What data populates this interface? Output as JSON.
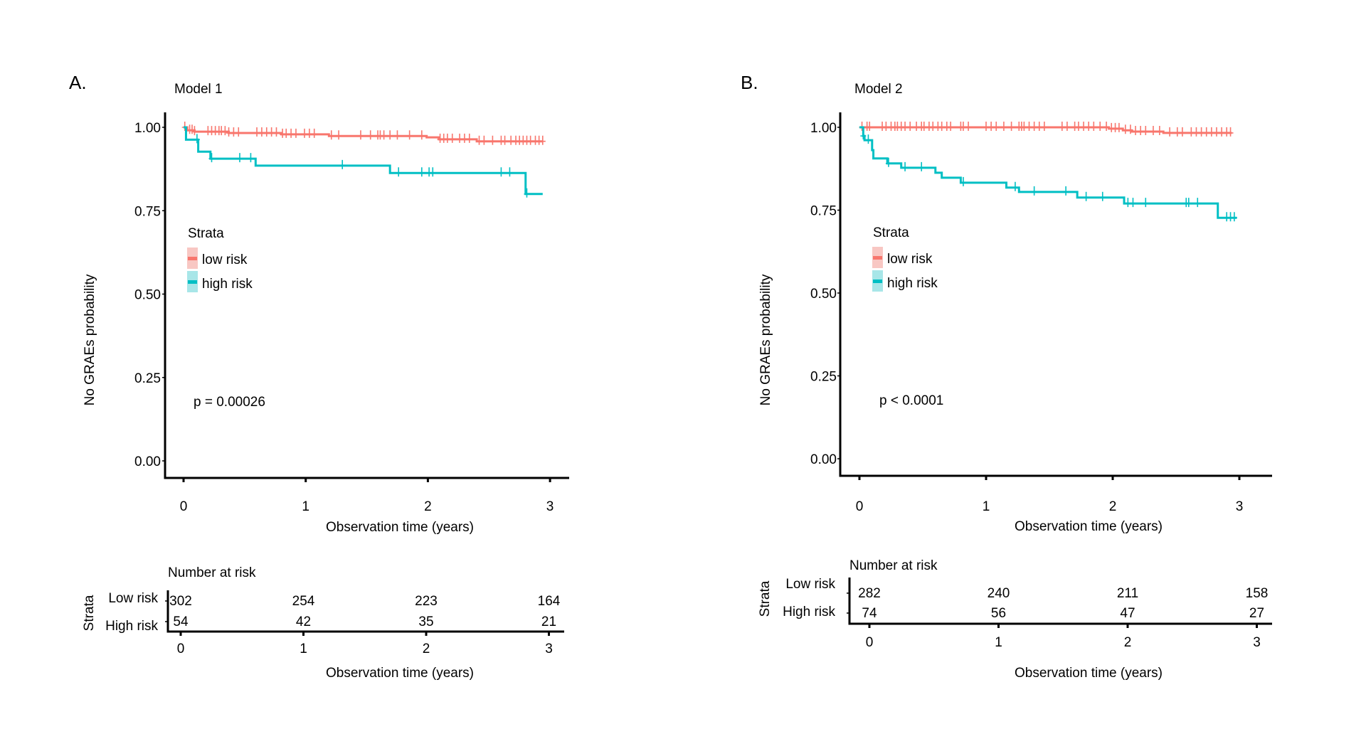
{
  "colors": {
    "low_risk": "#F8766D",
    "high_risk": "#00BFC4",
    "low_risk_fill": "#F8C7C3",
    "high_risk_fill": "#A8E6E8",
    "axis": "#000000"
  },
  "chart_data": [
    {
      "type": "line",
      "subtype": "kaplan-meier step",
      "panel_label": "A.",
      "title": "Model 1",
      "xlabel": "Observation time (years)",
      "ylabel": "No GRAEs probability",
      "xlim": [
        0,
        3
      ],
      "ylim": [
        0,
        1
      ],
      "xticks": [
        "0",
        "1",
        "2",
        "3"
      ],
      "yticks": [
        "0.00",
        "0.25",
        "0.50",
        "0.75",
        "1.00"
      ],
      "grid": false,
      "legend": {
        "title": "Strata",
        "placement": "left-middle",
        "entries": [
          "low risk",
          "high risk"
        ]
      },
      "annotation": "p = 0.00026",
      "series": [
        {
          "name": "low risk",
          "steps": [
            [
              0,
              1.0
            ],
            [
              0.03,
              0.991
            ],
            [
              0.09,
              0.987
            ],
            [
              0.37,
              0.983
            ],
            [
              0.8,
              0.979
            ],
            [
              1.19,
              0.974
            ],
            [
              1.99,
              0.97
            ],
            [
              2.09,
              0.964
            ],
            [
              2.4,
              0.958
            ],
            [
              2.94,
              0.958
            ]
          ],
          "censor_times": [
            0.01,
            0.05,
            0.07,
            0.09,
            0.2,
            0.23,
            0.26,
            0.29,
            0.31,
            0.34,
            0.37,
            0.41,
            0.45,
            0.6,
            0.64,
            0.68,
            0.72,
            0.76,
            0.81,
            0.84,
            0.88,
            0.92,
            0.99,
            1.03,
            1.07,
            1.21,
            1.27,
            1.45,
            1.53,
            1.59,
            1.61,
            1.64,
            1.69,
            1.75,
            1.85,
            1.95,
            2.1,
            2.13,
            2.16,
            2.2,
            2.26,
            2.3,
            2.34,
            2.42,
            2.46,
            2.53,
            2.6,
            2.63,
            2.68,
            2.72,
            2.75,
            2.78,
            2.81,
            2.84,
            2.88,
            2.91,
            2.94
          ]
        },
        {
          "name": "high risk",
          "steps": [
            [
              0,
              1.0
            ],
            [
              0.02,
              0.963
            ],
            [
              0.12,
              0.927
            ],
            [
              0.22,
              0.906
            ],
            [
              0.59,
              0.885
            ],
            [
              1.69,
              0.863
            ],
            [
              2.8,
              0.8
            ],
            [
              2.94,
              0.8
            ]
          ],
          "censor_times": [
            0.11,
            0.23,
            0.46,
            0.55,
            1.3,
            1.76,
            1.95,
            2.01,
            2.04,
            2.6,
            2.67,
            2.81
          ]
        }
      ],
      "risk_table": {
        "title": "Number at risk",
        "ylabel": "Strata",
        "xlabel": "Observation time (years)",
        "xticks": [
          "0",
          "1",
          "2",
          "3"
        ],
        "rows": [
          {
            "label": "Low risk",
            "values": [
              "302",
              "254",
              "223",
              "164"
            ]
          },
          {
            "label": "High risk",
            "values": [
              "54",
              "42",
              "35",
              "21"
            ]
          }
        ]
      }
    },
    {
      "type": "line",
      "subtype": "kaplan-meier step",
      "panel_label": "B.",
      "title": "Model 2",
      "xlabel": "Observation time (years)",
      "ylabel": "No GRAEs probability",
      "xlim": [
        0,
        3
      ],
      "ylim": [
        0,
        1
      ],
      "xticks": [
        "0",
        "1",
        "2",
        "3"
      ],
      "yticks": [
        "0.00",
        "0.25",
        "0.50",
        "0.75",
        "1.00"
      ],
      "grid": false,
      "legend": {
        "title": "Strata",
        "placement": "left-middle",
        "entries": [
          "low risk",
          "high risk"
        ]
      },
      "annotation": "p < 0.0001",
      "series": [
        {
          "name": "low risk",
          "steps": [
            [
              0,
              1.0
            ],
            [
              1.97,
              0.996
            ],
            [
              2.08,
              0.991
            ],
            [
              2.15,
              0.987
            ],
            [
              2.4,
              0.983
            ],
            [
              2.94,
              0.983
            ]
          ],
          "censor_times": [
            0.02,
            0.06,
            0.08,
            0.18,
            0.21,
            0.25,
            0.28,
            0.3,
            0.33,
            0.36,
            0.4,
            0.45,
            0.49,
            0.51,
            0.55,
            0.58,
            0.62,
            0.65,
            0.69,
            0.72,
            0.8,
            0.82,
            0.86,
            1.0,
            1.04,
            1.08,
            1.14,
            1.2,
            1.26,
            1.28,
            1.3,
            1.34,
            1.38,
            1.42,
            1.46,
            1.6,
            1.64,
            1.7,
            1.73,
            1.77,
            1.81,
            1.85,
            1.9,
            1.95,
            1.99,
            2.02,
            2.05,
            2.1,
            2.14,
            2.18,
            2.22,
            2.26,
            2.32,
            2.37,
            2.45,
            2.51,
            2.55,
            2.62,
            2.66,
            2.7,
            2.74,
            2.78,
            2.82,
            2.86,
            2.9,
            2.93
          ]
        },
        {
          "name": "high risk",
          "steps": [
            [
              0,
              1.0
            ],
            [
              0.03,
              0.974
            ],
            [
              0.04,
              0.961
            ],
            [
              0.1,
              0.931
            ],
            [
              0.11,
              0.906
            ],
            [
              0.22,
              0.891
            ],
            [
              0.33,
              0.878
            ],
            [
              0.6,
              0.863
            ],
            [
              0.65,
              0.848
            ],
            [
              0.8,
              0.833
            ],
            [
              1.16,
              0.818
            ],
            [
              1.26,
              0.805
            ],
            [
              1.72,
              0.788
            ],
            [
              2.09,
              0.77
            ],
            [
              2.83,
              0.727
            ],
            [
              2.98,
              0.727
            ]
          ],
          "censor_times": [
            0.03,
            0.07,
            0.23,
            0.36,
            0.49,
            0.82,
            1.23,
            1.38,
            1.63,
            1.79,
            1.92,
            2.12,
            2.16,
            2.26,
            2.58,
            2.6,
            2.67,
            2.9,
            2.93,
            2.96
          ]
        }
      ],
      "risk_table": {
        "title": "Number at risk",
        "ylabel": "Strata",
        "xlabel": "Observation time (years)",
        "xticks": [
          "0",
          "1",
          "2",
          "3"
        ],
        "rows": [
          {
            "label": "Low risk",
            "values": [
              "282",
              "240",
              "211",
              "158"
            ]
          },
          {
            "label": "High risk",
            "values": [
              "74",
              "56",
              "47",
              "27"
            ]
          }
        ]
      }
    }
  ]
}
